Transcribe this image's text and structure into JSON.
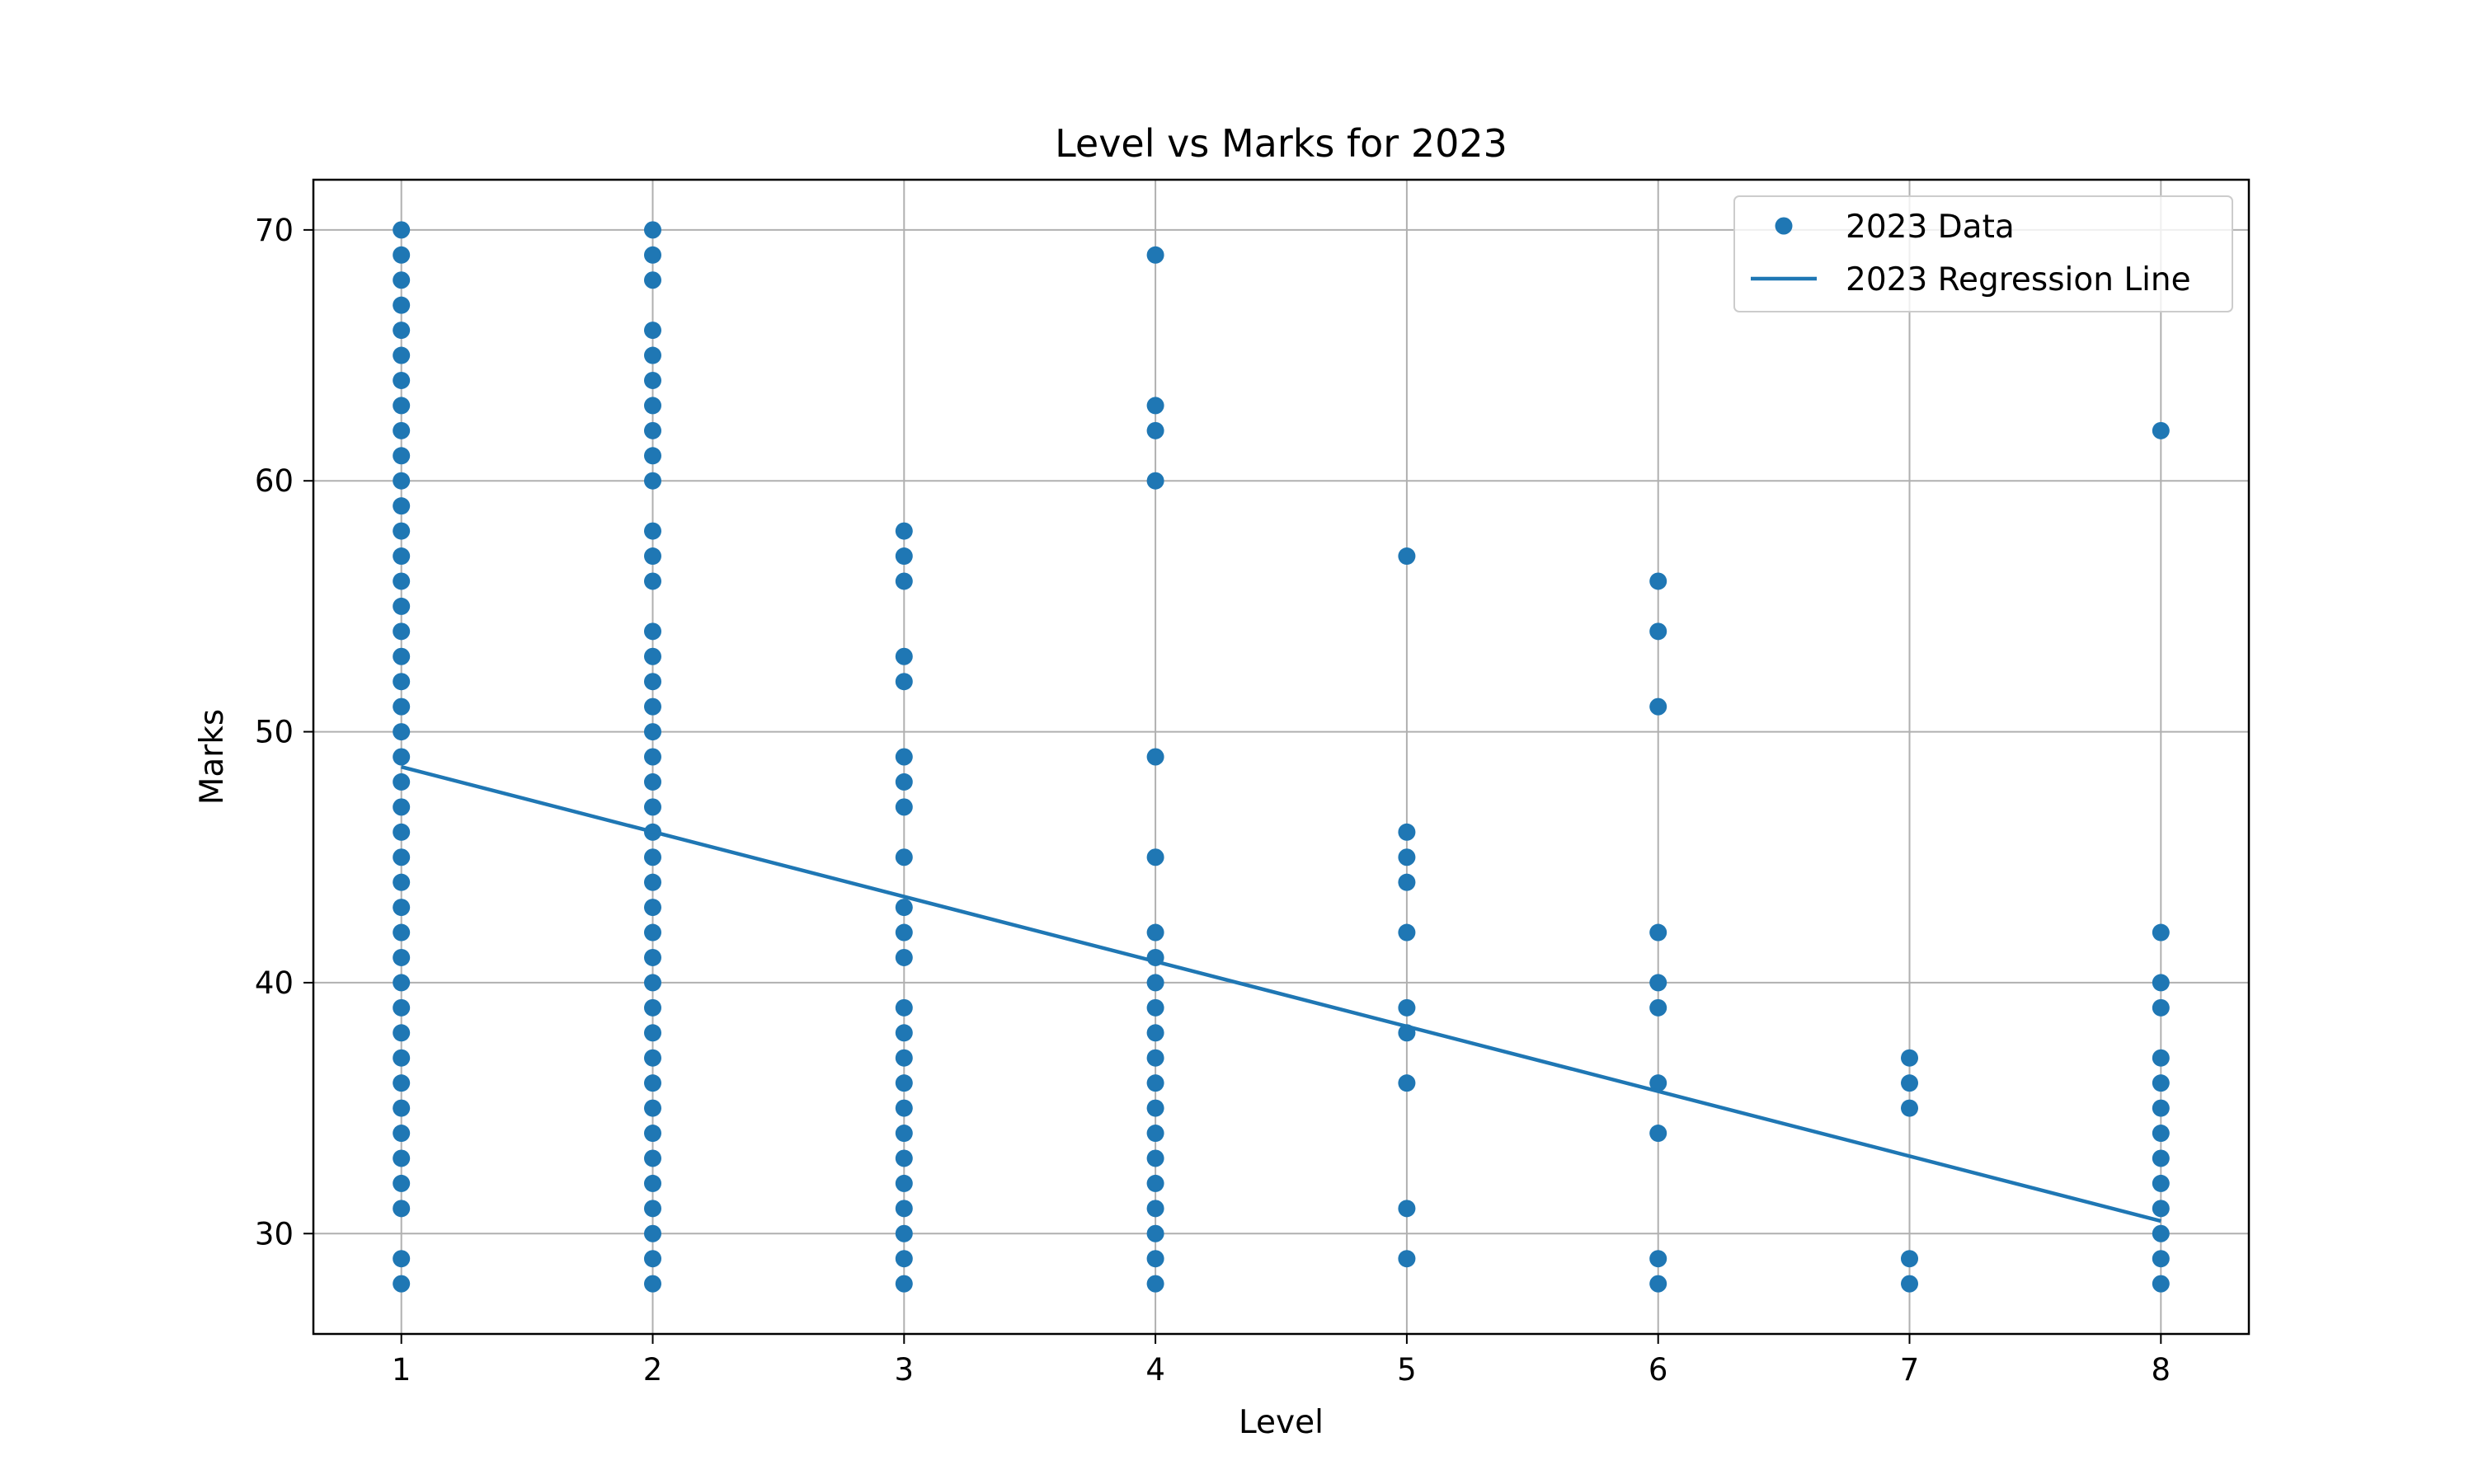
{
  "chart_data": {
    "type": "scatter",
    "title": "Level vs Marks for 2023",
    "xlabel": "Level",
    "ylabel": "Marks",
    "xlim": [
      0.65,
      8.35
    ],
    "ylim": [
      26,
      72
    ],
    "xticks": [
      1,
      2,
      3,
      4,
      5,
      6,
      7,
      8
    ],
    "yticks": [
      30,
      40,
      50,
      60,
      70
    ],
    "grid": true,
    "legend_position": "top-right",
    "series": [
      {
        "name": "2023 Data",
        "kind": "scatter",
        "color": "#1f77b4",
        "points": [
          [
            1,
            28
          ],
          [
            1,
            29
          ],
          [
            1,
            31
          ],
          [
            1,
            32
          ],
          [
            1,
            33
          ],
          [
            1,
            34
          ],
          [
            1,
            35
          ],
          [
            1,
            36
          ],
          [
            1,
            37
          ],
          [
            1,
            38
          ],
          [
            1,
            39
          ],
          [
            1,
            40
          ],
          [
            1,
            41
          ],
          [
            1,
            42
          ],
          [
            1,
            43
          ],
          [
            1,
            44
          ],
          [
            1,
            45
          ],
          [
            1,
            46
          ],
          [
            1,
            47
          ],
          [
            1,
            48
          ],
          [
            1,
            49
          ],
          [
            1,
            50
          ],
          [
            1,
            51
          ],
          [
            1,
            52
          ],
          [
            1,
            53
          ],
          [
            1,
            54
          ],
          [
            1,
            55
          ],
          [
            1,
            56
          ],
          [
            1,
            57
          ],
          [
            1,
            58
          ],
          [
            1,
            59
          ],
          [
            1,
            60
          ],
          [
            1,
            61
          ],
          [
            1,
            62
          ],
          [
            1,
            63
          ],
          [
            1,
            64
          ],
          [
            1,
            65
          ],
          [
            1,
            66
          ],
          [
            1,
            67
          ],
          [
            1,
            68
          ],
          [
            1,
            69
          ],
          [
            1,
            70
          ],
          [
            2,
            28
          ],
          [
            2,
            29
          ],
          [
            2,
            30
          ],
          [
            2,
            31
          ],
          [
            2,
            32
          ],
          [
            2,
            33
          ],
          [
            2,
            34
          ],
          [
            2,
            35
          ],
          [
            2,
            36
          ],
          [
            2,
            37
          ],
          [
            2,
            38
          ],
          [
            2,
            39
          ],
          [
            2,
            40
          ],
          [
            2,
            41
          ],
          [
            2,
            42
          ],
          [
            2,
            43
          ],
          [
            2,
            44
          ],
          [
            2,
            45
          ],
          [
            2,
            46
          ],
          [
            2,
            47
          ],
          [
            2,
            48
          ],
          [
            2,
            49
          ],
          [
            2,
            50
          ],
          [
            2,
            51
          ],
          [
            2,
            52
          ],
          [
            2,
            53
          ],
          [
            2,
            54
          ],
          [
            2,
            56
          ],
          [
            2,
            57
          ],
          [
            2,
            58
          ],
          [
            2,
            60
          ],
          [
            2,
            61
          ],
          [
            2,
            62
          ],
          [
            2,
            63
          ],
          [
            2,
            64
          ],
          [
            2,
            65
          ],
          [
            2,
            66
          ],
          [
            2,
            68
          ],
          [
            2,
            69
          ],
          [
            2,
            70
          ],
          [
            3,
            28
          ],
          [
            3,
            29
          ],
          [
            3,
            30
          ],
          [
            3,
            31
          ],
          [
            3,
            32
          ],
          [
            3,
            33
          ],
          [
            3,
            34
          ],
          [
            3,
            35
          ],
          [
            3,
            36
          ],
          [
            3,
            37
          ],
          [
            3,
            38
          ],
          [
            3,
            39
          ],
          [
            3,
            41
          ],
          [
            3,
            42
          ],
          [
            3,
            43
          ],
          [
            3,
            45
          ],
          [
            3,
            47
          ],
          [
            3,
            48
          ],
          [
            3,
            49
          ],
          [
            3,
            52
          ],
          [
            3,
            53
          ],
          [
            3,
            56
          ],
          [
            3,
            57
          ],
          [
            3,
            58
          ],
          [
            4,
            28
          ],
          [
            4,
            29
          ],
          [
            4,
            30
          ],
          [
            4,
            31
          ],
          [
            4,
            32
          ],
          [
            4,
            33
          ],
          [
            4,
            34
          ],
          [
            4,
            35
          ],
          [
            4,
            36
          ],
          [
            4,
            37
          ],
          [
            4,
            38
          ],
          [
            4,
            39
          ],
          [
            4,
            40
          ],
          [
            4,
            41
          ],
          [
            4,
            42
          ],
          [
            4,
            45
          ],
          [
            4,
            49
          ],
          [
            4,
            60
          ],
          [
            4,
            62
          ],
          [
            4,
            63
          ],
          [
            4,
            69
          ],
          [
            5,
            29
          ],
          [
            5,
            31
          ],
          [
            5,
            36
          ],
          [
            5,
            38
          ],
          [
            5,
            39
          ],
          [
            5,
            42
          ],
          [
            5,
            44
          ],
          [
            5,
            45
          ],
          [
            5,
            46
          ],
          [
            5,
            57
          ],
          [
            6,
            28
          ],
          [
            6,
            29
          ],
          [
            6,
            34
          ],
          [
            6,
            36
          ],
          [
            6,
            39
          ],
          [
            6,
            40
          ],
          [
            6,
            42
          ],
          [
            6,
            51
          ],
          [
            6,
            54
          ],
          [
            6,
            56
          ],
          [
            7,
            28
          ],
          [
            7,
            29
          ],
          [
            7,
            35
          ],
          [
            7,
            36
          ],
          [
            7,
            37
          ],
          [
            8,
            28
          ],
          [
            8,
            29
          ],
          [
            8,
            30
          ],
          [
            8,
            31
          ],
          [
            8,
            32
          ],
          [
            8,
            33
          ],
          [
            8,
            34
          ],
          [
            8,
            35
          ],
          [
            8,
            36
          ],
          [
            8,
            37
          ],
          [
            8,
            39
          ],
          [
            8,
            40
          ],
          [
            8,
            42
          ],
          [
            8,
            62
          ]
        ]
      },
      {
        "name": "2023 Regression Line",
        "kind": "line",
        "color": "#1f77b4",
        "points": [
          [
            1,
            48.6
          ],
          [
            8,
            30.5
          ]
        ]
      }
    ]
  }
}
